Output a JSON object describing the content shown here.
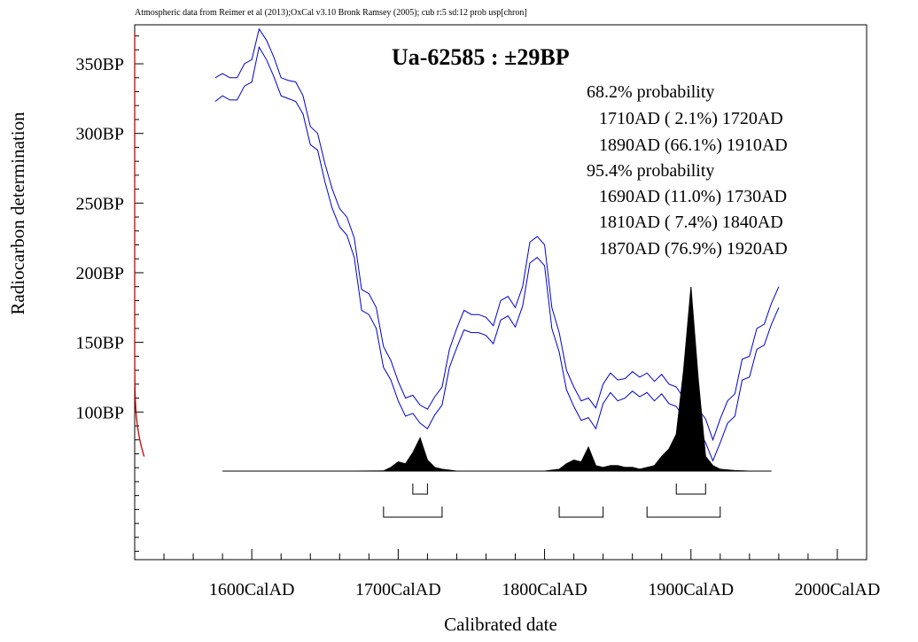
{
  "header_text": "Atmospheric data from Reimer et al (2013);OxCal v3.10 Bronk Ramsey (2005); cub r:5 sd:12 prob usp[chron]",
  "sample": {
    "title": "Ua-62585 : ±29BP"
  },
  "probabilities": {
    "p68_label": "68.2% probability",
    "p68_ranges": [
      "1710AD ( 2.1%) 1720AD",
      "1890AD (66.1%) 1910AD"
    ],
    "p95_label": "95.4% probability",
    "p95_ranges": [
      "1690AD (11.0%) 1730AD",
      "1810AD ( 7.4%) 1840AD",
      "1870AD (76.9%) 1920AD"
    ]
  },
  "colors": {
    "calibration_curve": "#0000cc",
    "measurement": "#cc0000",
    "distribution": "#000000"
  },
  "chart_data": {
    "type": "line",
    "xlabel": "Calibrated date",
    "ylabel": "Radiocarbon determination",
    "xlim": [
      1520,
      2020
    ],
    "ylim": [
      -6,
      378
    ],
    "x_ticks": [
      1600,
      1700,
      1800,
      1900,
      2000
    ],
    "x_tick_labels": [
      "1600CalAD",
      "1700CalAD",
      "1800CalAD",
      "1900CalAD",
      "2000CalAD"
    ],
    "y_ticks": [
      100,
      150,
      200,
      250,
      300,
      350
    ],
    "y_tick_labels": [
      "100BP",
      "150BP",
      "200BP",
      "250BP",
      "300BP",
      "350BP"
    ],
    "calibration_curve": {
      "x": [
        1575,
        1580,
        1585,
        1590,
        1595,
        1600,
        1605,
        1610,
        1615,
        1620,
        1625,
        1630,
        1635,
        1640,
        1645,
        1650,
        1655,
        1660,
        1665,
        1670,
        1675,
        1680,
        1685,
        1690,
        1695,
        1700,
        1705,
        1710,
        1715,
        1720,
        1725,
        1730,
        1735,
        1740,
        1745,
        1750,
        1755,
        1760,
        1765,
        1770,
        1775,
        1780,
        1785,
        1790,
        1795,
        1800,
        1805,
        1810,
        1815,
        1820,
        1825,
        1830,
        1835,
        1840,
        1845,
        1850,
        1855,
        1860,
        1865,
        1870,
        1875,
        1880,
        1885,
        1890,
        1895,
        1900,
        1905,
        1910,
        1915,
        1920,
        1925,
        1930,
        1935,
        1940,
        1945,
        1950,
        1955,
        1960
      ],
      "upper": [
        340,
        343,
        340,
        340,
        350,
        353,
        375,
        367,
        355,
        340,
        338,
        337,
        327,
        305,
        300,
        278,
        260,
        246,
        240,
        225,
        188,
        185,
        175,
        147,
        137,
        122,
        110,
        112,
        105,
        102,
        111,
        118,
        145,
        160,
        173,
        170,
        170,
        168,
        162,
        180,
        183,
        175,
        190,
        222,
        226,
        220,
        175,
        157,
        130,
        118,
        108,
        110,
        103,
        120,
        128,
        123,
        124,
        129,
        125,
        128,
        122,
        127,
        120,
        118,
        110,
        108,
        102,
        95,
        80,
        95,
        108,
        113,
        138,
        140,
        160,
        163,
        178,
        190
      ],
      "lower": [
        323,
        327,
        324,
        324,
        334,
        337,
        362,
        353,
        341,
        327,
        325,
        323,
        314,
        292,
        288,
        265,
        246,
        233,
        227,
        211,
        173,
        170,
        160,
        132,
        123,
        108,
        97,
        99,
        92,
        88,
        98,
        105,
        132,
        146,
        159,
        157,
        157,
        155,
        149,
        166,
        169,
        161,
        176,
        207,
        211,
        205,
        160,
        143,
        116,
        104,
        94,
        96,
        88,
        106,
        114,
        108,
        110,
        115,
        111,
        114,
        108,
        113,
        106,
        104,
        96,
        94,
        88,
        78,
        65,
        78,
        92,
        97,
        123,
        125,
        145,
        148,
        163,
        175
      ]
    },
    "probability_distribution": {
      "x": [
        1580,
        1670,
        1690,
        1695,
        1700,
        1705,
        1710,
        1715,
        1720,
        1725,
        1730,
        1740,
        1760,
        1800,
        1810,
        1815,
        1820,
        1825,
        1830,
        1835,
        1840,
        1845,
        1850,
        1855,
        1860,
        1865,
        1870,
        1875,
        1880,
        1885,
        1890,
        1895,
        1900,
        1905,
        1910,
        1915,
        1920,
        1930,
        1940,
        1955
      ],
      "p": [
        0,
        0,
        0.001,
        0.02,
        0.05,
        0.04,
        0.1,
        0.18,
        0.06,
        0.02,
        0.01,
        0,
        0,
        0,
        0.01,
        0.04,
        0.06,
        0.05,
        0.13,
        0.03,
        0.02,
        0.03,
        0.03,
        0.02,
        0.02,
        0.01,
        0.02,
        0.03,
        0.08,
        0.12,
        0.2,
        0.55,
        1.0,
        0.5,
        0.08,
        0.03,
        0.01,
        0.003,
        0,
        0
      ]
    },
    "range_bars": {
      "p68": [
        [
          1710,
          1720
        ],
        [
          1890,
          1910
        ]
      ],
      "p95": [
        [
          1690,
          1730
        ],
        [
          1810,
          1840
        ],
        [
          1870,
          1920
        ]
      ]
    }
  }
}
